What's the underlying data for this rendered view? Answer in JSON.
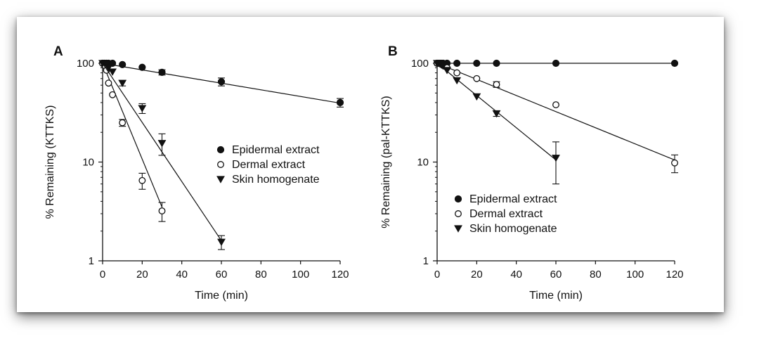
{
  "chart_data": [
    {
      "type": "scatter",
      "panel_label": "A",
      "title": "",
      "xlabel": "Time (min)",
      "ylabel": "% Remaining (KTTKS)",
      "xlim": [
        0,
        120
      ],
      "ylim": [
        1,
        100
      ],
      "yscale": "log",
      "xticks": [
        0,
        20,
        40,
        60,
        80,
        100,
        120
      ],
      "xtick_labels": [
        "0",
        "20",
        "40",
        "60",
        "80",
        "100",
        "120"
      ],
      "yticks": [
        1,
        10,
        100
      ],
      "ytick_labels": [
        "1",
        "10",
        "100"
      ],
      "grid": false,
      "legend_position": "center-right",
      "series": [
        {
          "name": "Epidermal extract",
          "marker": "filled-circle",
          "x": [
            0,
            1,
            2,
            3,
            5,
            10,
            20,
            30,
            60,
            120
          ],
          "y": [
            100,
            100,
            100,
            100,
            100,
            97,
            91,
            81,
            65,
            40
          ],
          "err": [
            0,
            0,
            0,
            0,
            0,
            0,
            0,
            5,
            6,
            4
          ],
          "fit": [
            [
              0,
              100
            ],
            [
              120,
              39.5
            ]
          ]
        },
        {
          "name": "Dermal extract",
          "marker": "open-circle",
          "x": [
            0,
            1,
            2,
            3,
            5,
            10,
            20,
            30
          ],
          "y": [
            100,
            95,
            85,
            63,
            48,
            25,
            6.5,
            3.2
          ],
          "err": [
            0,
            0,
            0,
            0,
            0,
            2,
            1.2,
            0.7
          ],
          "fit": [
            [
              0,
              100
            ],
            [
              30,
              3.5
            ]
          ]
        },
        {
          "name": "Skin homogenate",
          "marker": "filled-triangle-down",
          "x": [
            0,
            1,
            2,
            3,
            5,
            10,
            20,
            30,
            60
          ],
          "y": [
            100,
            100,
            98,
            90,
            82,
            63,
            35,
            15.5,
            1.55
          ],
          "err": [
            0,
            0,
            0,
            0,
            0,
            4,
            4,
            3.8,
            0.25
          ],
          "fit": [
            [
              0,
              100
            ],
            [
              60,
              1.6
            ]
          ]
        }
      ]
    },
    {
      "type": "scatter",
      "panel_label": "B",
      "title": "",
      "xlabel": "Time (min)",
      "ylabel": "% Remaining (pal-KTTKS)",
      "xlim": [
        0,
        120
      ],
      "ylim": [
        1,
        100
      ],
      "yscale": "log",
      "xticks": [
        0,
        20,
        40,
        60,
        80,
        100,
        120
      ],
      "xtick_labels": [
        "0",
        "20",
        "40",
        "60",
        "80",
        "100",
        "120"
      ],
      "yticks": [
        1,
        10,
        100
      ],
      "ytick_labels": [
        "1",
        "10",
        "100"
      ],
      "grid": false,
      "legend_position": "lower-left",
      "series": [
        {
          "name": "Epidermal extract",
          "marker": "filled-circle",
          "x": [
            0,
            1,
            2,
            3,
            5,
            10,
            20,
            30,
            60,
            120
          ],
          "y": [
            100,
            100,
            100,
            100,
            100,
            100,
            100,
            100,
            100,
            100
          ],
          "err": [
            0,
            0,
            0,
            0,
            0,
            0,
            0,
            0,
            0,
            0
          ],
          "fit": [
            [
              0,
              100
            ],
            [
              120,
              100
            ]
          ]
        },
        {
          "name": "Dermal extract",
          "marker": "open-circle",
          "x": [
            0,
            1,
            2,
            3,
            5,
            10,
            20,
            30,
            60,
            120
          ],
          "y": [
            100,
            100,
            98,
            95,
            90,
            80,
            70,
            61,
            38,
            9.8
          ],
          "err": [
            0,
            0,
            0,
            0,
            0,
            0,
            0,
            4,
            0,
            2
          ],
          "fit": [
            [
              0,
              100
            ],
            [
              120,
              10.5
            ]
          ]
        },
        {
          "name": "Skin homogenate",
          "marker": "filled-triangle-down",
          "x": [
            0,
            1,
            2,
            3,
            5,
            10,
            20,
            30,
            60
          ],
          "y": [
            100,
            100,
            98,
            94,
            85,
            67,
            46,
            31,
            11
          ],
          "err": [
            0,
            0,
            0,
            0,
            0,
            0,
            0,
            2,
            5
          ],
          "fit": [
            [
              0,
              100
            ],
            [
              60,
              10.5
            ]
          ]
        }
      ]
    }
  ]
}
